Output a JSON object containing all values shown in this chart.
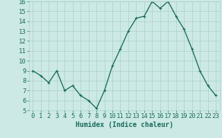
{
  "xlabel": "Humidex (Indice chaleur)",
  "x": [
    0,
    1,
    2,
    3,
    4,
    5,
    6,
    7,
    8,
    9,
    10,
    11,
    12,
    13,
    14,
    15,
    16,
    17,
    18,
    19,
    20,
    21,
    22,
    23
  ],
  "y": [
    9.0,
    8.5,
    7.8,
    9.0,
    7.0,
    7.5,
    6.5,
    6.0,
    5.2,
    7.0,
    9.5,
    11.2,
    13.0,
    14.3,
    14.5,
    16.0,
    15.3,
    16.0,
    14.5,
    13.2,
    11.2,
    9.0,
    7.5,
    6.5
  ],
  "line_color": "#1a6b5a",
  "marker": "+",
  "marker_size": 3,
  "line_width": 1.0,
  "background_color": "#cce9e5",
  "grid_color": "#aacfca",
  "ylim": [
    5,
    16
  ],
  "yticks": [
    5,
    6,
    7,
    8,
    9,
    10,
    11,
    12,
    13,
    14,
    15,
    16
  ],
  "tick_color": "#1a6b5a",
  "label_color": "#1a6b5a",
  "xlabel_fontsize": 7,
  "tick_fontsize": 6.5
}
